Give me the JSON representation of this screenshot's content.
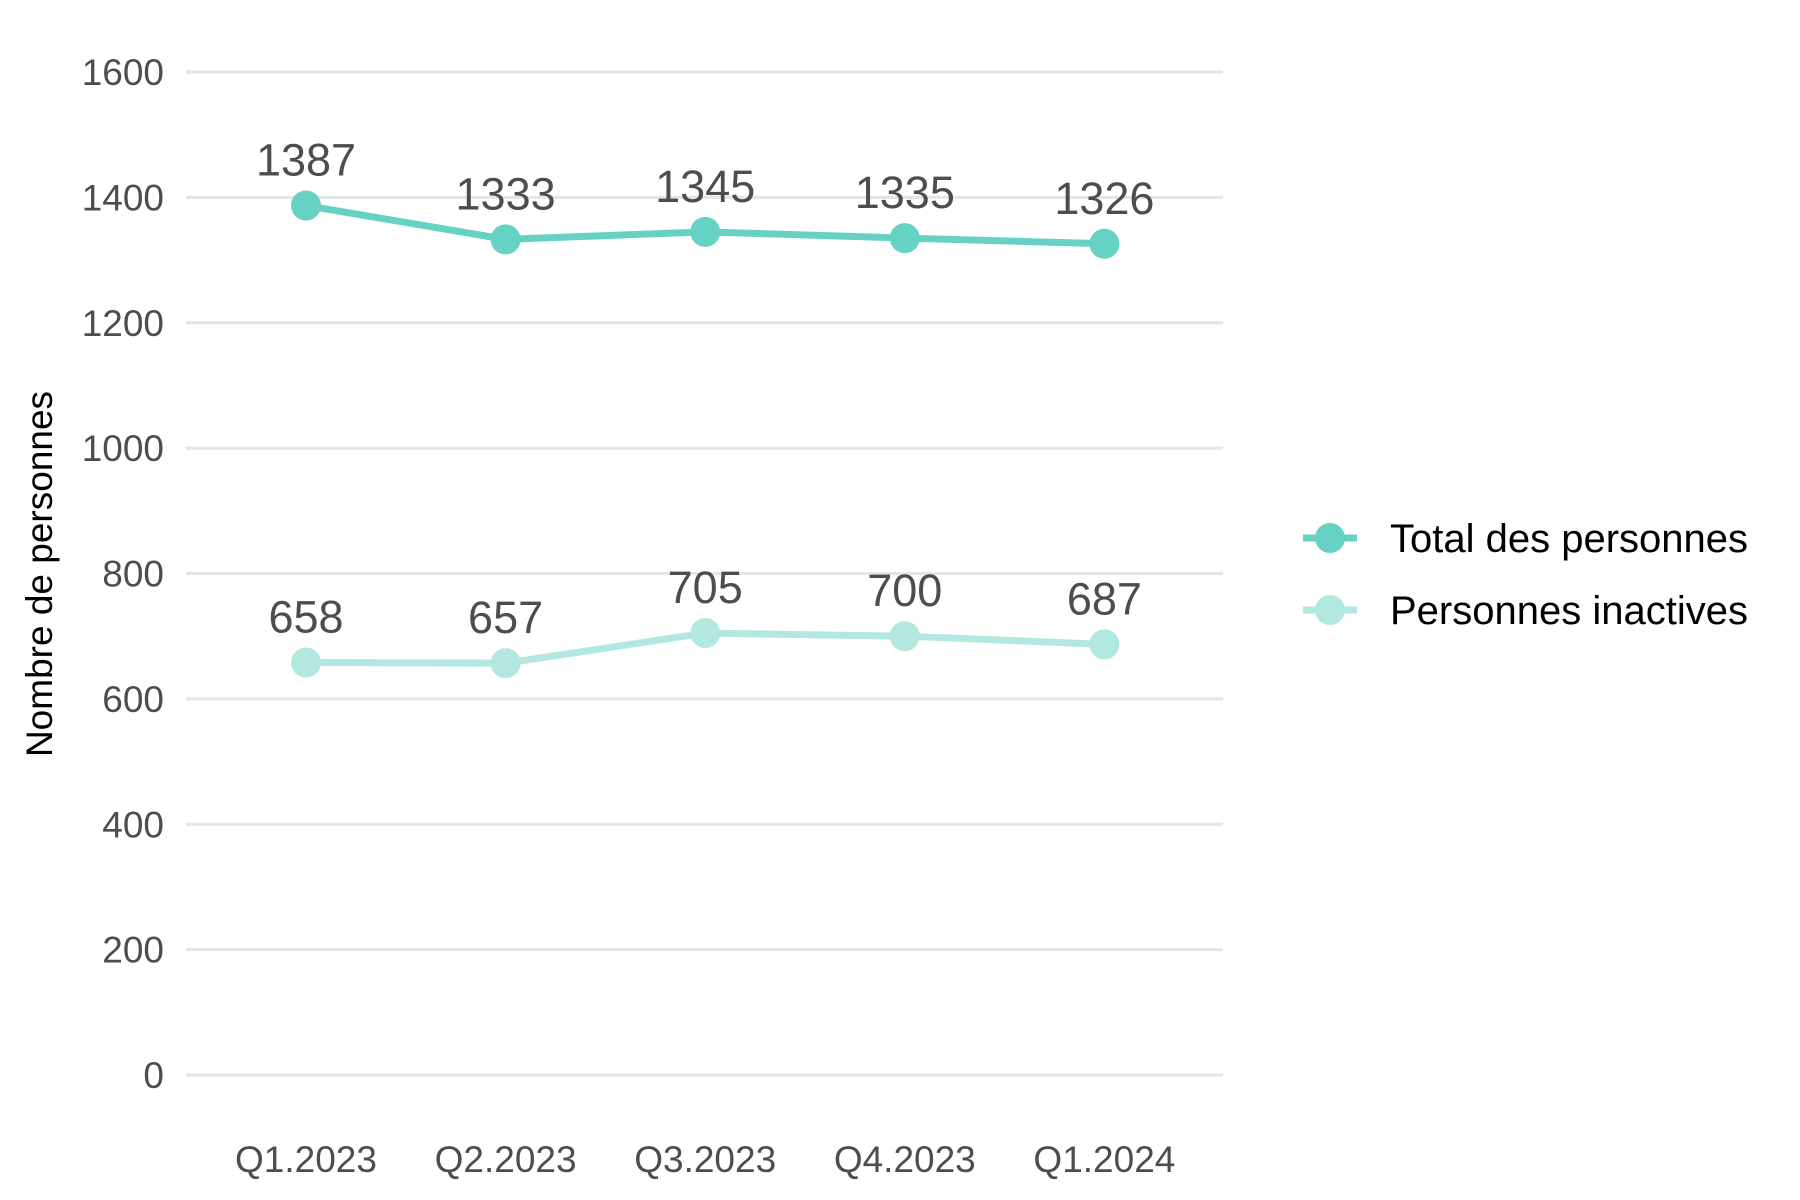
{
  "chart_data": {
    "type": "line",
    "title": "",
    "xlabel": "",
    "ylabel": "Nombre de personnes",
    "categories": [
      "Q1.2023",
      "Q2.2023",
      "Q3.2023",
      "Q4.2023",
      "Q1.2024"
    ],
    "ylim": [
      0,
      1600
    ],
    "yticks": [
      0,
      200,
      400,
      600,
      800,
      1000,
      1200,
      1400,
      1600
    ],
    "grid": true,
    "legend_position": "right",
    "series": [
      {
        "name": "Total des personnes",
        "color": "#66d2c3",
        "values": [
          1387,
          1333,
          1345,
          1335,
          1326
        ]
      },
      {
        "name": "Personnes inactives",
        "color": "#b2e8e0",
        "values": [
          658,
          657,
          705,
          700,
          687
        ]
      }
    ]
  }
}
